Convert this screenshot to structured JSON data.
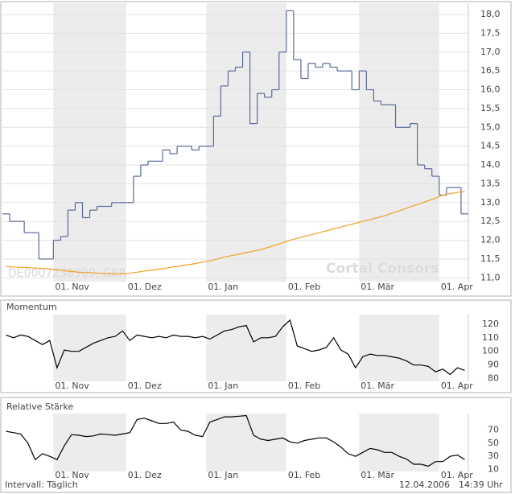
{
  "chart_data": [
    {
      "type": "line",
      "categories": [
        null,
        null,
        null,
        null,
        null,
        null,
        null,
        "01. Nov",
        null,
        null,
        null,
        null,
        null,
        null,
        null,
        null,
        null,
        "01. Dez",
        null,
        null,
        null,
        null,
        null,
        null,
        null,
        null,
        null,
        null,
        "01. Jan",
        null,
        null,
        null,
        null,
        null,
        null,
        null,
        null,
        null,
        null,
        "01. Feb",
        null,
        null,
        null,
        null,
        null,
        null,
        null,
        null,
        null,
        "01. Mär",
        null,
        null,
        null,
        null,
        null,
        null,
        null,
        null,
        null,
        null,
        "01. Apr",
        null,
        null,
        null
      ],
      "series": [
        {
          "color": "#5a6a9a",
          "step": true,
          "values": [
            12.7,
            12.5,
            12.5,
            12.2,
            12.2,
            11.5,
            11.5,
            12.0,
            12.1,
            12.8,
            13.0,
            12.6,
            12.8,
            12.9,
            12.9,
            13.0,
            13.0,
            13.0,
            13.7,
            14.0,
            14.1,
            14.1,
            14.4,
            14.3,
            14.5,
            14.5,
            14.4,
            14.5,
            14.5,
            15.3,
            16.1,
            16.5,
            16.6,
            17.0,
            15.1,
            15.9,
            15.8,
            16.0,
            17.0,
            18.1,
            16.8,
            16.3,
            16.7,
            16.6,
            16.7,
            16.6,
            16.5,
            16.5,
            16.0,
            16.5,
            16.0,
            15.7,
            15.6,
            15.6,
            15.0,
            15.0,
            15.1,
            14.0,
            13.9,
            13.7,
            13.2,
            13.4,
            13.4,
            12.7
          ]
        },
        {
          "color": "#f0a020",
          "step": false,
          "values": [
            11.3,
            11.29,
            11.28,
            11.27,
            11.26,
            11.25,
            11.23,
            11.21,
            11.19,
            11.17,
            11.15,
            11.14,
            11.13,
            11.12,
            11.11,
            11.1,
            11.11,
            11.12,
            11.15,
            11.18,
            11.2,
            11.23,
            11.26,
            11.29,
            11.32,
            11.35,
            11.38,
            11.42,
            11.45,
            11.5,
            11.55,
            11.59,
            11.63,
            11.67,
            11.71,
            11.75,
            11.81,
            11.87,
            11.93,
            12.0,
            12.05,
            12.1,
            12.15,
            12.2,
            12.25,
            12.3,
            12.35,
            12.4,
            12.45,
            12.5,
            12.55,
            12.6,
            12.65,
            12.72,
            12.78,
            12.85,
            12.92,
            12.98,
            13.05,
            13.12,
            13.2,
            13.24,
            13.27,
            13.3
          ]
        }
      ],
      "ylim": [
        10.9,
        18.3
      ],
      "yticks": [
        {
          "value": 11,
          "label": "11,0"
        },
        {
          "value": 11.5,
          "label": "11,5"
        },
        {
          "value": 12,
          "label": "12,0"
        },
        {
          "value": 12.5,
          "label": "12,5"
        },
        {
          "value": 13,
          "label": "13,0"
        },
        {
          "value": 13.5,
          "label": "13,5"
        },
        {
          "value": 14,
          "label": "14,0"
        },
        {
          "value": 14.5,
          "label": "14,5"
        },
        {
          "value": 15,
          "label": "15,0"
        },
        {
          "value": 15.5,
          "label": "15,5"
        },
        {
          "value": 16,
          "label": "16,0"
        },
        {
          "value": 16.5,
          "label": "16,5"
        },
        {
          "value": 17,
          "label": "17,0"
        },
        {
          "value": 17.5,
          "label": "17,5"
        },
        {
          "value": 18,
          "label": "18,0"
        }
      ],
      "grid": true,
      "annotations": [
        "DE0007238909, GER",
        "Cortal Consors"
      ]
    },
    {
      "type": "line",
      "title": "Momentum",
      "categories": [
        null,
        null,
        null,
        null,
        null,
        null,
        null,
        "01. Nov",
        null,
        null,
        null,
        null,
        null,
        null,
        null,
        null,
        null,
        "01. Dez",
        null,
        null,
        null,
        null,
        null,
        null,
        null,
        null,
        null,
        null,
        "01. Jan",
        null,
        null,
        null,
        null,
        null,
        null,
        null,
        null,
        null,
        null,
        "01. Feb",
        null,
        null,
        null,
        null,
        null,
        null,
        null,
        null,
        null,
        "01. Mär",
        null,
        null,
        null,
        null,
        null,
        null,
        null,
        null,
        null,
        null,
        "01. Apr",
        null,
        null,
        null
      ],
      "series": [
        {
          "color": "#000000",
          "step": false,
          "values": [
            112,
            110,
            112,
            111,
            108,
            105,
            108,
            88,
            101,
            100,
            100,
            103,
            106,
            108,
            110,
            111,
            115,
            108,
            112,
            111,
            110,
            111,
            110,
            112,
            111,
            111,
            110,
            111,
            109,
            112,
            115,
            116,
            118,
            119,
            107,
            110,
            110,
            111,
            118,
            123,
            104,
            102,
            100,
            101,
            103,
            110,
            101,
            98,
            88,
            96,
            98,
            97,
            97,
            96,
            95,
            93,
            90,
            90,
            89,
            85,
            87,
            83,
            88,
            86
          ]
        }
      ],
      "ylim": [
        78,
        127
      ],
      "yticks": [
        80,
        90,
        100,
        110,
        120
      ],
      "grid": false
    },
    {
      "type": "line",
      "title": "Relative Stärke",
      "categories": [
        null,
        null,
        null,
        null,
        null,
        null,
        null,
        "01. Nov",
        null,
        null,
        null,
        null,
        null,
        null,
        null,
        null,
        null,
        "01. Dez",
        null,
        null,
        null,
        null,
        null,
        null,
        null,
        null,
        null,
        null,
        "01. Jan",
        null,
        null,
        null,
        null,
        null,
        null,
        null,
        null,
        null,
        null,
        "01. Feb",
        null,
        null,
        null,
        null,
        null,
        null,
        null,
        null,
        null,
        "01. Mär",
        null,
        null,
        null,
        null,
        null,
        null,
        null,
        null,
        null,
        null,
        "01. Apr",
        null,
        null,
        null
      ],
      "series": [
        {
          "color": "#000000",
          "step": false,
          "values": [
            68,
            66,
            64,
            50,
            25,
            34,
            30,
            25,
            46,
            63,
            62,
            60,
            61,
            64,
            63,
            62,
            64,
            66,
            86,
            88,
            84,
            80,
            80,
            82,
            70,
            68,
            62,
            60,
            82,
            86,
            90,
            90,
            91,
            92,
            62,
            56,
            54,
            56,
            58,
            52,
            50,
            54,
            56,
            58,
            58,
            52,
            44,
            34,
            30,
            36,
            42,
            40,
            36,
            36,
            30,
            26,
            18,
            18,
            15,
            22,
            22,
            30,
            32,
            25
          ]
        }
      ],
      "ylim": [
        7,
        95
      ],
      "yticks": [
        10,
        30,
        50,
        70
      ],
      "grid": false
    }
  ],
  "footer": {
    "interval": "Intervall: Täglich",
    "date": "12.04.2006",
    "time": "14:39 Uhr"
  }
}
